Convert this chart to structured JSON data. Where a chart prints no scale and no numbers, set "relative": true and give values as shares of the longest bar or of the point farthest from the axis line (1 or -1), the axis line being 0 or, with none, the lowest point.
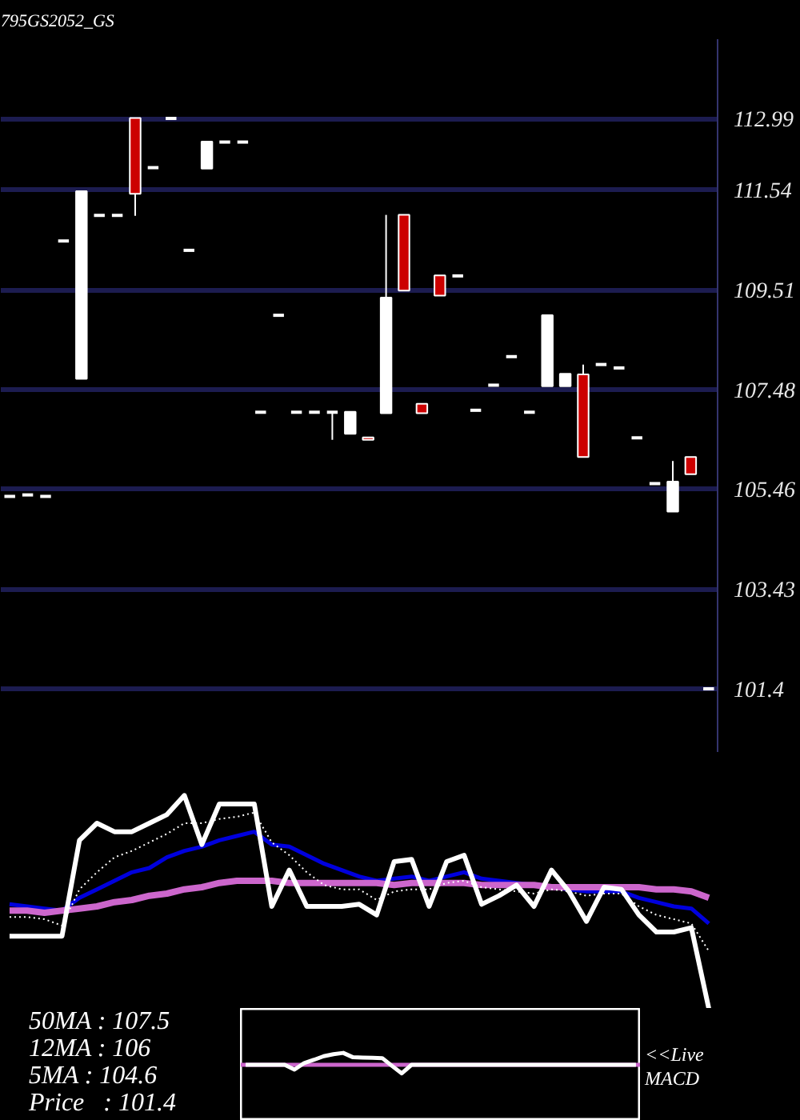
{
  "chart_data": [
    {
      "type": "candlestick",
      "title": "795GS2052_GS",
      "categories": [
        null,
        null,
        null,
        null,
        null,
        null,
        null,
        null,
        null,
        null,
        null,
        null,
        null,
        null,
        null,
        null,
        null,
        null,
        null,
        null,
        null,
        null,
        null,
        null,
        null,
        null,
        null,
        null,
        null,
        null,
        null,
        null,
        null,
        null,
        null,
        null,
        null,
        null,
        null,
        null
      ],
      "ohlc": [
        [
          105.31,
          105.31,
          105.31,
          105.31
        ],
        [
          105.34,
          105.34,
          105.34,
          105.34
        ],
        [
          105.31,
          105.31,
          105.31,
          105.31
        ],
        [
          110.5,
          110.5,
          110.5,
          110.5
        ],
        [
          107.7,
          111.51,
          107.7,
          111.51
        ],
        [
          111.02,
          111.02,
          111.02,
          111.02
        ],
        [
          111.02,
          111.02,
          111.02,
          111.02
        ],
        [
          113.0,
          113.0,
          111.01,
          111.46
        ],
        [
          111.99,
          111.99,
          111.99,
          111.99
        ],
        [
          112.99,
          112.99,
          112.99,
          112.99
        ],
        [
          110.31,
          110.31,
          110.31,
          110.31
        ],
        [
          111.97,
          112.52,
          111.97,
          112.52
        ],
        [
          112.51,
          112.51,
          112.51,
          112.51
        ],
        [
          112.51,
          112.51,
          112.51,
          112.51
        ],
        [
          107.02,
          107.02,
          107.02,
          107.02
        ],
        [
          108.99,
          108.99,
          108.99,
          108.99
        ],
        [
          107.02,
          107.02,
          107.02,
          107.02
        ],
        [
          107.02,
          107.02,
          107.02,
          107.02
        ],
        [
          107.02,
          107.02,
          106.46,
          107.02
        ],
        [
          106.58,
          107.03,
          106.58,
          107.03
        ],
        [
          106.51,
          106.51,
          106.46,
          106.46
        ],
        [
          107.0,
          111.03,
          107.0,
          109.35
        ],
        [
          111.03,
          111.03,
          109.49,
          109.49
        ],
        [
          107.19,
          107.19,
          107.0,
          107.0
        ],
        [
          109.8,
          109.8,
          109.39,
          109.39
        ],
        [
          109.79,
          109.79,
          109.79,
          109.79
        ],
        [
          107.06,
          107.06,
          107.06,
          107.06
        ],
        [
          107.57,
          107.57,
          107.57,
          107.57
        ],
        [
          108.15,
          108.15,
          108.15,
          108.15
        ],
        [
          107.02,
          107.02,
          107.02,
          107.02
        ],
        [
          107.55,
          108.99,
          107.55,
          108.99
        ],
        [
          107.55,
          107.8,
          107.55,
          107.8
        ],
        [
          107.79,
          107.99,
          106.11,
          106.11
        ],
        [
          107.99,
          107.99,
          107.99,
          107.99
        ],
        [
          107.92,
          107.92,
          107.92,
          107.92
        ],
        [
          106.5,
          106.5,
          106.5,
          106.5
        ],
        [
          105.57,
          105.57,
          105.57,
          105.57
        ],
        [
          105.0,
          106.03,
          105.0,
          105.61
        ],
        [
          106.11,
          106.11,
          105.76,
          105.76
        ],
        [
          101.4,
          101.4,
          101.4,
          101.4
        ]
      ],
      "colors": [
        "#ffffff",
        "#ffffff",
        "#ffffff",
        "#ffffff",
        "#ffffff",
        "#ffffff",
        "#ffffff",
        "#cc0000",
        "#ffffff",
        "#ffffff",
        "#ffffff",
        "#ffffff",
        "#ffffff",
        "#ffffff",
        "#ffffff",
        "#ffffff",
        "#ffffff",
        "#ffffff",
        "#ffffff",
        "#ffffff",
        "#cc0000",
        "#ffffff",
        "#cc0000",
        "#cc0000",
        "#cc0000",
        "#ffffff",
        "#ffffff",
        "#ffffff",
        "#ffffff",
        "#ffffff",
        "#ffffff",
        "#ffffff",
        "#cc0000",
        "#ffffff",
        "#ffffff",
        "#ffffff",
        "#ffffff",
        "#ffffff",
        "#cc0000",
        "#ffffff"
      ],
      "ylim": [
        100.1,
        114.6
      ],
      "yticks": [
        101.4,
        103.43,
        105.46,
        107.48,
        109.51,
        111.54,
        112.99
      ],
      "grid": "y",
      "tick_labels": "y"
    },
    {
      "type": "line",
      "relative": true,
      "line_style": "solid",
      "tick_labels": false,
      "categories": [
        null,
        null,
        null,
        null,
        null,
        null,
        null,
        null,
        null,
        null,
        null,
        null,
        null,
        null,
        null,
        null,
        null,
        null,
        null,
        null,
        null,
        null,
        null,
        null,
        null,
        null,
        null,
        null,
        null,
        null,
        null,
        null,
        null,
        null,
        null,
        null,
        null,
        null,
        null,
        null,
        null
      ],
      "series": [
        {
          "color": "#0000dd",
          "values": [
            0.49,
            0.48,
            0.47,
            0.46,
            0.52,
            0.56,
            0.6,
            0.64,
            0.66,
            0.71,
            0.74,
            0.76,
            0.79,
            0.81,
            0.83,
            0.77,
            0.76,
            0.72,
            0.68,
            0.65,
            0.62,
            0.6,
            0.61,
            0.62,
            0.6,
            0.62,
            0.64,
            0.61,
            0.6,
            0.59,
            0.58,
            0.57,
            0.56,
            0.55,
            0.55,
            0.55,
            0.52,
            0.5,
            0.48,
            0.47,
            0.4
          ]
        },
        {
          "color": "#cc66cc",
          "values": [
            0.46,
            0.46,
            0.45,
            0.46,
            0.47,
            0.48,
            0.5,
            0.51,
            0.53,
            0.54,
            0.56,
            0.57,
            0.59,
            0.6,
            0.6,
            0.6,
            0.59,
            0.59,
            0.59,
            0.59,
            0.59,
            0.59,
            0.58,
            0.59,
            0.59,
            0.59,
            0.59,
            0.58,
            0.58,
            0.58,
            0.58,
            0.57,
            0.57,
            0.57,
            0.57,
            0.57,
            0.57,
            0.56,
            0.56,
            0.55,
            0.52
          ]
        },
        {
          "color": "#ffffff",
          "line_style": "dotted",
          "values": [
            0.43,
            0.43,
            0.42,
            0.39,
            0.56,
            0.64,
            0.71,
            0.74,
            0.78,
            0.82,
            0.87,
            0.87,
            0.89,
            0.9,
            0.92,
            0.78,
            0.72,
            0.64,
            0.58,
            0.56,
            0.56,
            0.51,
            0.55,
            0.56,
            0.56,
            0.59,
            0.6,
            0.57,
            0.56,
            0.55,
            0.54,
            0.56,
            0.55,
            0.53,
            0.54,
            0.54,
            0.48,
            0.44,
            0.42,
            0.4,
            0.27
          ]
        },
        {
          "color": "#ffffff",
          "values": [
            0.34,
            0.34,
            0.34,
            0.34,
            0.79,
            0.87,
            0.83,
            0.83,
            0.87,
            0.91,
            1.0,
            0.77,
            0.96,
            0.96,
            0.96,
            0.48,
            0.65,
            0.48,
            0.48,
            0.48,
            0.49,
            0.44,
            0.69,
            0.7,
            0.48,
            0.69,
            0.72,
            0.49,
            0.53,
            0.58,
            0.48,
            0.65,
            0.55,
            0.41,
            0.57,
            0.56,
            0.44,
            0.36,
            0.36,
            0.38,
            0.0
          ]
        }
      ],
      "annotations": [
        "50MA : 107.5",
        "12MA : 106",
        "5MA : 104.6",
        "Price   : 101.4"
      ]
    },
    {
      "type": "line",
      "relative": true,
      "tick_labels": false,
      "categories": [
        null,
        null,
        null,
        null,
        null,
        null,
        null,
        null,
        null,
        null,
        null,
        null,
        null,
        null,
        null,
        null,
        null,
        null,
        null,
        null,
        null,
        null,
        null,
        null,
        null,
        null,
        null,
        null,
        null,
        null,
        null,
        null,
        null,
        null,
        null,
        null,
        null,
        null,
        null,
        null,
        null
      ],
      "series": [
        {
          "color": "#ffffff",
          "values": [
            0,
            0,
            0,
            0,
            0,
            -0.4,
            0.15,
            0.42,
            0.72,
            0.89,
            1.0,
            0.63,
            0.61,
            0.58,
            0.56,
            -0.09,
            -0.72,
            0,
            0,
            0,
            0,
            0,
            0,
            0,
            0,
            0,
            0,
            0,
            0,
            0,
            0,
            0,
            0,
            0,
            0,
            0,
            0,
            0,
            0,
            0,
            0
          ]
        }
      ],
      "ref_lines": [
        {
          "axis": "y",
          "value": 0,
          "color": "#cc66cc"
        }
      ],
      "annotations": [
        "<<Live MACD"
      ]
    }
  ]
}
